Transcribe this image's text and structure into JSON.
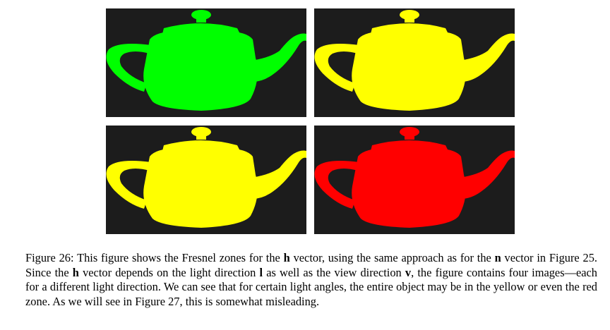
{
  "colors": {
    "background": "#1c1c1c",
    "green": "#00ff00",
    "yellow": "#ffff00",
    "red": "#ff0000"
  },
  "panels": [
    {
      "zones": [
        "green",
        "yellow"
      ]
    },
    {
      "zones": [
        "green",
        "yellow"
      ]
    },
    {
      "zones": [
        "yellow",
        "red"
      ]
    },
    {
      "zones": [
        "yellow",
        "red"
      ]
    }
  ],
  "caption": {
    "label": "Figure 26:",
    "t1": " This figure shows the Fresnel zones for the ",
    "h1": "h",
    "t2": " vector, using the same approach as for the ",
    "n1": "n",
    "t3": " vector in Figure 25. Since the ",
    "h2": "h",
    "t4": " vector depends on the light direction ",
    "l1": "l",
    "t5": " as well as the view direction ",
    "v1": "v",
    "t6": ", the figure contains four images—each for a different light direction. We can see that for certain light angles, the entire object may be in the yellow or even the red zone. As we will see in Figure 27, this is somewhat misleading."
  }
}
